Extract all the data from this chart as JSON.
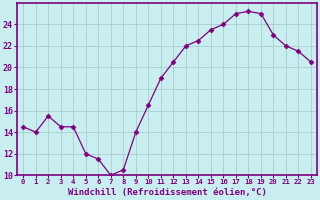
{
  "x": [
    0,
    1,
    2,
    3,
    4,
    5,
    6,
    7,
    8,
    9,
    10,
    11,
    12,
    13,
    14,
    15,
    16,
    17,
    18,
    19,
    20,
    21,
    22,
    23
  ],
  "y": [
    14.5,
    14.0,
    15.5,
    14.5,
    14.5,
    12.0,
    11.5,
    10.0,
    10.5,
    14.0,
    16.5,
    19.0,
    20.5,
    22.0,
    22.5,
    23.5,
    24.0,
    25.0,
    25.2,
    25.0,
    23.0,
    22.0,
    21.5,
    20.5
  ],
  "line_color": "#800080",
  "marker": "D",
  "marker_size": 2.5,
  "background_color": "#c8eef0",
  "grid_color": "#aacccc",
  "xlabel": "Windchill (Refroidissement éolien,°C)",
  "ylim": [
    10,
    26
  ],
  "yticks": [
    10,
    12,
    14,
    16,
    18,
    20,
    22,
    24
  ],
  "xtick_labels": [
    "0",
    "1",
    "2",
    "3",
    "4",
    "5",
    "6",
    "7",
    "8",
    "9",
    "10",
    "11",
    "12",
    "13",
    "14",
    "15",
    "16",
    "17",
    "18",
    "19",
    "20",
    "21",
    "22",
    "23"
  ],
  "tick_color": "#800080",
  "label_color": "#800080",
  "axis_color": "#800080",
  "spine_color": "#800080"
}
